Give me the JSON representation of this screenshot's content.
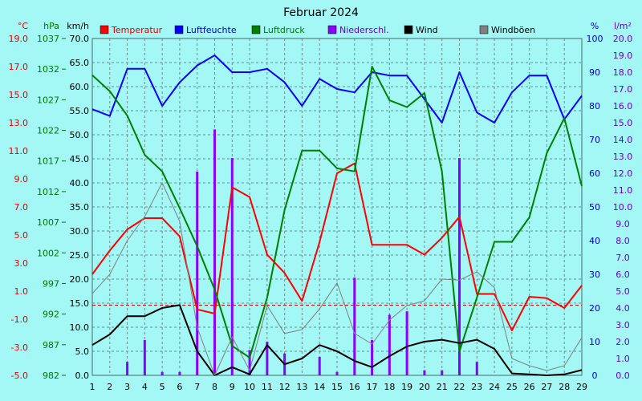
{
  "chart_data": {
    "type": "line",
    "title": "Februar 2024",
    "x": [
      1,
      2,
      3,
      4,
      5,
      6,
      7,
      8,
      9,
      10,
      11,
      12,
      13,
      14,
      15,
      16,
      17,
      18,
      19,
      20,
      21,
      22,
      23,
      24,
      25,
      26,
      27,
      28,
      29
    ],
    "axes": {
      "temp": {
        "unit": "°C",
        "min": -5.0,
        "max": 19.0,
        "ticks": [
          "19.0",
          "17.0",
          "15.0",
          "13.0",
          "11.0",
          "9.0",
          "7.0",
          "5.0",
          "3.0",
          "1.0",
          "-1.0",
          "-3.0",
          "-5.0"
        ],
        "color": "#e00000"
      },
      "press": {
        "unit": "hPa",
        "min": 982,
        "max": 1037,
        "ticks": [
          "1037",
          "1032",
          "1027",
          "1022",
          "1017",
          "1012",
          "1007",
          "1002",
          "997",
          "992",
          "987",
          "982"
        ],
        "color": "#007a00"
      },
      "wind": {
        "unit": "km/h",
        "min": 0,
        "max": 70,
        "ticks": [
          "70.0",
          "65.0",
          "60.0",
          "55.0",
          "50.0",
          "45.0",
          "40.0",
          "35.0",
          "30.0",
          "25.0",
          "20.0",
          "15.0",
          "10.0",
          "5.0",
          "0.0"
        ],
        "color": "#000000"
      },
      "hum": {
        "unit": "%",
        "min": 0,
        "max": 100,
        "ticks": [
          "100",
          "90",
          "80",
          "70",
          "60",
          "50",
          "40",
          "30",
          "20",
          "10",
          "0"
        ],
        "color": "#0000cc"
      },
      "rain": {
        "unit": "l/m²",
        "min": 0,
        "max": 20,
        "ticks": [
          "20.0",
          "19.0",
          "18.0",
          "17.0",
          "16.0",
          "15.0",
          "14.0",
          "13.0",
          "12.0",
          "11.0",
          "10.0",
          "9.0",
          "8.0",
          "7.0",
          "6.0",
          "5.0",
          "4.0",
          "3.0",
          "2.0",
          "1.0",
          "0.0"
        ],
        "color": "#6600cc"
      }
    },
    "series": [
      {
        "name": "Temperatur",
        "key": "temp",
        "color": "#ff0000",
        "values": [
          2.2,
          3.9,
          5.4,
          6.2,
          6.2,
          4.9,
          -0.3,
          -0.6,
          8.4,
          7.7,
          3.6,
          2.3,
          0.3,
          4.5,
          9.4,
          10.1,
          4.3,
          4.3,
          4.3,
          3.6,
          4.8,
          6.3,
          0.8,
          0.8,
          -1.8,
          0.6,
          0.5,
          -0.2,
          1.4
        ]
      },
      {
        "name": "Luftfeuchte",
        "key": "hum",
        "color": "#0000ff",
        "values": [
          79,
          77,
          91,
          91,
          80,
          87,
          92,
          95,
          90,
          90,
          91,
          87,
          80,
          88,
          85,
          84,
          90,
          89,
          89,
          82,
          75,
          90,
          78,
          75,
          84,
          89,
          89,
          76,
          83
        ]
      },
      {
        "name": "Luftdruck",
        "key": "press",
        "color": "#008000",
        "values": [
          1031.0,
          1028.4,
          1024.4,
          1018.0,
          1015.3,
          1009.3,
          1003.1,
          996.0,
          986.8,
          984.9,
          994.7,
          1009.0,
          1018.7,
          1018.7,
          1015.8,
          1015.3,
          1032.4,
          1026.9,
          1025.8,
          1028.1,
          1015.3,
          985.9,
          994.7,
          1003.8,
          1003.8,
          1007.8,
          1018.3,
          1024.0,
          1012.9
        ]
      },
      {
        "name": "Wind",
        "key": "wind",
        "color": "#000000",
        "values": [
          6.3,
          8.5,
          12.3,
          12.3,
          14.0,
          14.6,
          5.0,
          0.0,
          1.7,
          0.2,
          6.3,
          2.3,
          3.5,
          6.3,
          5.0,
          3.0,
          1.7,
          4.0,
          6.0,
          7.0,
          7.4,
          6.7,
          7.4,
          5.5,
          0.4,
          0.2,
          0.0,
          0.2,
          1.1
        ]
      },
      {
        "name": "Windböen",
        "key": "wind",
        "color": "#808080",
        "values": [
          17.0,
          21.0,
          28.0,
          33.0,
          40.0,
          32.0,
          10.0,
          0.0,
          8.0,
          1.0,
          14.5,
          8.7,
          9.5,
          13.8,
          19.2,
          8.7,
          6.5,
          11.5,
          14.5,
          15.5,
          20.0,
          19.8,
          21.5,
          18.2,
          3.5,
          2.0,
          1.0,
          2.0,
          7.8
        ]
      },
      {
        "name": "Niederschl.",
        "key": "rain",
        "color": "#8800ff",
        "type": "bar",
        "values": [
          0,
          0,
          0.8,
          2.1,
          0.2,
          0.2,
          12.1,
          14.6,
          12.9,
          1.5,
          2.0,
          1.3,
          0,
          1.1,
          0.2,
          5.8,
          2.1,
          3.6,
          3.8,
          0.3,
          0.3,
          12.9,
          0.8,
          0,
          0,
          0,
          0,
          0,
          0
        ]
      }
    ],
    "reference_line": {
      "axis": "temp",
      "value": 0.0,
      "color": "#cc0000"
    },
    "grid": true,
    "legend": "top"
  }
}
